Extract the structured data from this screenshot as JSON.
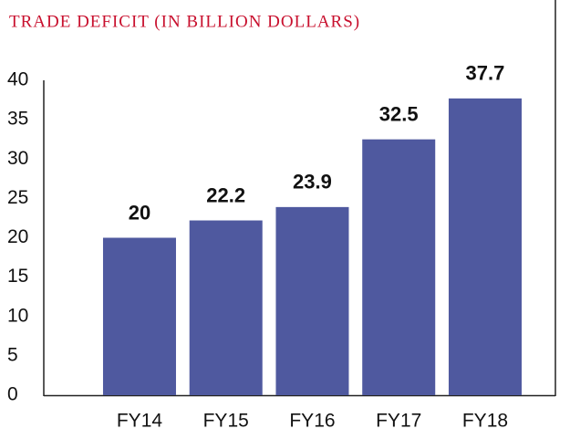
{
  "chart_data": {
    "type": "bar",
    "title": "TRADE DEFICIT (IN BILLION DOLLARS)",
    "categories": [
      "FY14",
      "FY15",
      "FY16",
      "FY17",
      "FY18"
    ],
    "values": [
      20,
      22.2,
      23.9,
      32.5,
      37.7
    ],
    "color": "#4f599f",
    "ylim": [
      0,
      40
    ],
    "yticks": [
      0,
      5,
      10,
      15,
      20,
      25,
      30,
      35,
      40
    ]
  }
}
